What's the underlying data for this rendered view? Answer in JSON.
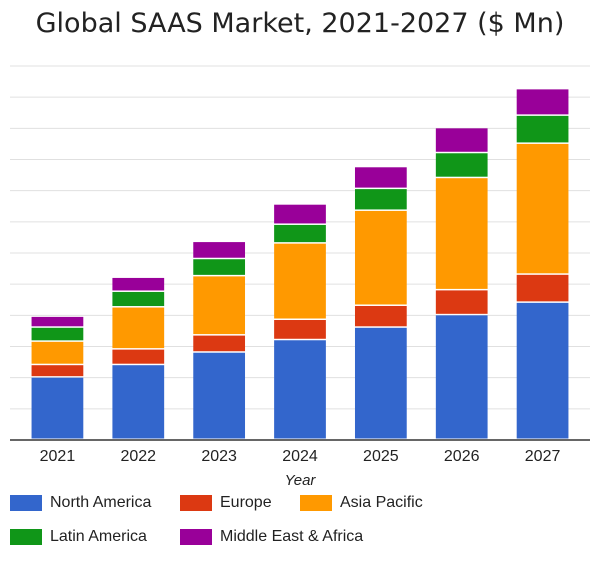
{
  "chart_data": {
    "type": "bar",
    "stacked": true,
    "title": "Global SAAS Market, 2021-2027 ($ Mn)",
    "xlabel": "Year",
    "ylabel": "",
    "categories": [
      "2021",
      "2022",
      "2023",
      "2024",
      "2025",
      "2026",
      "2027"
    ],
    "series": [
      {
        "name": "North America",
        "color": "#3366cc",
        "values": [
          2.0,
          2.4,
          2.8,
          3.2,
          3.6,
          4.0,
          4.4
        ]
      },
      {
        "name": "Europe",
        "color": "#dc3912",
        "values": [
          0.4,
          0.5,
          0.55,
          0.65,
          0.7,
          0.8,
          0.9
        ]
      },
      {
        "name": "Asia Pacific",
        "color": "#ff9900",
        "values": [
          0.75,
          1.35,
          1.9,
          2.45,
          3.05,
          3.6,
          4.2
        ]
      },
      {
        "name": "Latin America",
        "color": "#109618",
        "values": [
          0.45,
          0.5,
          0.55,
          0.6,
          0.7,
          0.8,
          0.9
        ]
      },
      {
        "name": "Middle East & Africa",
        "color": "#990099",
        "values": [
          0.35,
          0.45,
          0.55,
          0.65,
          0.7,
          0.8,
          0.85
        ]
      }
    ],
    "ylim": [
      0,
      12
    ],
    "grid": true,
    "y_tick_labels_shown": false,
    "legend_position": "bottom"
  }
}
